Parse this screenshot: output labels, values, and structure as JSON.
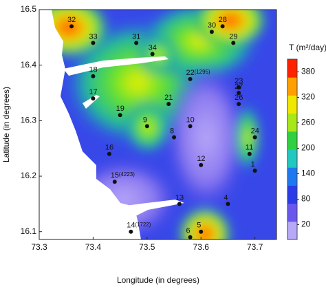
{
  "chart_data": {
    "type": "scatter",
    "xlabel": "Longitude (in degrees)",
    "ylabel": "Latitude (in degrees)",
    "xlim": [
      73.3,
      73.74
    ],
    "ylim": [
      16.086,
      16.5
    ],
    "xticks": [
      {
        "value": 73.3,
        "label": "73.3"
      },
      {
        "value": 73.4,
        "label": "73.4"
      },
      {
        "value": 73.5,
        "label": "73.5"
      },
      {
        "value": 73.6,
        "label": "73.6"
      },
      {
        "value": 73.7,
        "label": "73.7"
      }
    ],
    "yticks": [
      {
        "value": 16.1,
        "label": "16.1"
      },
      {
        "value": 16.2,
        "label": "16.2"
      },
      {
        "value": 16.3,
        "label": "16.3"
      },
      {
        "value": 16.4,
        "label": "16.4"
      },
      {
        "value": 16.5,
        "label": "16.5"
      }
    ],
    "color": "#111111",
    "points": {
      "labels": [
        "32",
        "33",
        "31",
        "34",
        "30",
        "28",
        "29",
        "22",
        "23",
        "27",
        "26",
        "18",
        "17",
        "21",
        "19",
        "9",
        "10",
        "8",
        "24",
        "11",
        "16",
        "12",
        "15",
        "13",
        "4",
        "6",
        "5",
        "14",
        "1"
      ],
      "sublabels": [
        null,
        null,
        null,
        null,
        null,
        null,
        null,
        "(1295)",
        null,
        null,
        null,
        null,
        null,
        null,
        null,
        null,
        null,
        null,
        null,
        null,
        null,
        null,
        "(4223)",
        null,
        null,
        null,
        null,
        "(1722)",
        null
      ],
      "x": [
        73.36,
        73.4,
        73.48,
        73.51,
        73.62,
        73.64,
        73.66,
        73.58,
        73.67,
        73.67,
        73.67,
        73.4,
        73.4,
        73.54,
        73.45,
        73.5,
        73.58,
        73.55,
        73.7,
        73.69,
        73.43,
        73.6,
        73.44,
        73.56,
        73.65,
        73.58,
        73.6,
        73.47,
        73.7
      ],
      "y": [
        16.47,
        16.44,
        16.44,
        16.42,
        16.46,
        16.47,
        16.44,
        16.375,
        16.36,
        16.35,
        16.33,
        16.38,
        16.34,
        16.33,
        16.31,
        16.29,
        16.29,
        16.27,
        16.27,
        16.24,
        16.24,
        16.22,
        16.19,
        16.15,
        16.15,
        16.09,
        16.1,
        16.1,
        16.21
      ]
    },
    "colorbar": {
      "title": "T (m²/day)",
      "lim": [
        -15,
        410
      ],
      "ticks": [
        20,
        80,
        140,
        200,
        260,
        320,
        380
      ],
      "colors": [
        "#b8a8f8",
        "#6a58ee",
        "#2a3ce8",
        "#1e78f0",
        "#20c8c0",
        "#30d040",
        "#a8e818",
        "#f0e800",
        "#ffa000",
        "#ff2000"
      ]
    }
  }
}
